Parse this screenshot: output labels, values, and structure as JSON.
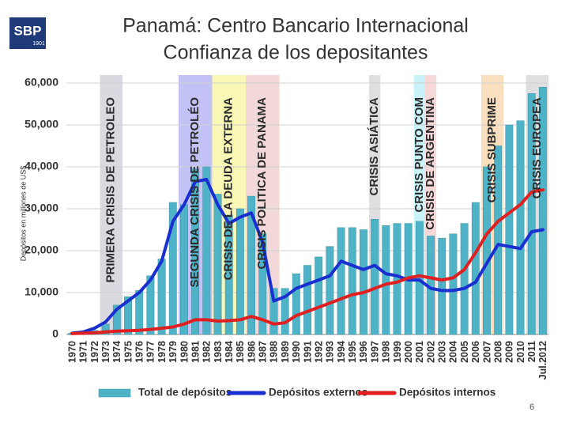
{
  "logo": {
    "text": "SBP",
    "year": "1901"
  },
  "page_number": "6",
  "chart_data": {
    "type": "combo",
    "title": "Panamá: Centro Bancario Internacional",
    "subtitle": "Confianza de los depositantes",
    "y_label": "Depósitos en millones de US$",
    "categories": [
      "1970",
      "1971",
      "1972",
      "1973",
      "1974",
      "1975",
      "1976",
      "1977",
      "1978",
      "1979",
      "1980",
      "1981",
      "1982",
      "1983",
      "1984",
      "1985",
      "1986",
      "1987",
      "1988",
      "1989",
      "1990",
      "1991",
      "1992",
      "1993",
      "1994",
      "1995",
      "1996",
      "1997",
      "1998",
      "1999",
      "2000",
      "2001",
      "2002",
      "2003",
      "2004",
      "2005",
      "2006",
      "2007",
      "2008",
      "2009",
      "2010",
      "2011",
      "Jul.2012"
    ],
    "series": [
      {
        "name": "Total de depósitos",
        "type": "bar",
        "color": "#4fb3c8",
        "values": [
          300,
          500,
          1000,
          2500,
          7000,
          9000,
          10500,
          14000,
          18000,
          31500,
          31000,
          39500,
          40000,
          33500,
          28500,
          30000,
          33000,
          24000,
          11000,
          11000,
          14500,
          16500,
          18500,
          21000,
          25500,
          25500,
          25000,
          27500,
          26000,
          26500,
          26500,
          27000,
          23500,
          23000,
          24000,
          26500,
          31500,
          40000,
          45000,
          50000,
          51000,
          57500,
          59000
        ]
      },
      {
        "name": "Depósitos externos",
        "type": "line",
        "color": "#1a2fd0",
        "values": [
          300,
          600,
          1500,
          3000,
          6000,
          8000,
          10000,
          13000,
          17500,
          27000,
          31000,
          36500,
          37000,
          31000,
          26500,
          28000,
          29000,
          22000,
          8000,
          9000,
          11000,
          12000,
          13000,
          14000,
          17500,
          16500,
          15500,
          16500,
          14500,
          14000,
          13000,
          13000,
          11000,
          10500,
          10500,
          11000,
          12500,
          17000,
          21500,
          21000,
          20500,
          24500,
          25000
        ]
      },
      {
        "name": "Depósitos internos",
        "type": "line",
        "color": "#e02020",
        "values": [
          200,
          300,
          400,
          600,
          800,
          900,
          1000,
          1200,
          1500,
          1800,
          2500,
          3500,
          3500,
          3200,
          3300,
          3500,
          4300,
          3500,
          2500,
          2800,
          4500,
          5500,
          6500,
          7500,
          8500,
          9500,
          10000,
          11000,
          12000,
          12500,
          13500,
          14000,
          13500,
          13000,
          13500,
          15500,
          19500,
          24000,
          27000,
          29000,
          31000,
          34000,
          34500
        ]
      }
    ],
    "annotations": [
      {
        "text": "PRIMERA CRISIS DE PETROLEO",
        "from": "1973",
        "to": "1974",
        "color": "#b8bcc4"
      },
      {
        "text": "SEGUNDA CRISIS DE PETROLÉO",
        "from": "1980",
        "to": "1982",
        "color": "#8f8ff0"
      },
      {
        "text": "CRISIS DE LA DEUDA EXTERNA",
        "from": "1983",
        "to": "1985",
        "color": "#f4f07a"
      },
      {
        "text": "CRISIS POLITICA DE PANAMA",
        "from": "1986",
        "to": "1988",
        "color": "#e8b8b8"
      },
      {
        "text": "CRISIS ASIÁTICA",
        "from": "1997",
        "to": "1997",
        "color": "#c4c4c8"
      },
      {
        "text": "CRISIS PUNTO COM",
        "from": "2001",
        "to": "2001",
        "color": "#9ee8f4"
      },
      {
        "text": "CRISIS DE ARGENTINA",
        "from": "2002",
        "to": "2002",
        "color": "#f0b8b8"
      },
      {
        "text": "CRISIS SUBPRIME",
        "from": "2007",
        "to": "2008",
        "color": "#f4c48a"
      },
      {
        "text": "CRISIS EUROPEA",
        "from": "2011",
        "to": "Jul.2012",
        "color": "#c4c4c8"
      }
    ],
    "ylim": [
      0,
      60000
    ],
    "yticks": [
      0,
      {
        "value": 10000,
        "label": "10,000"
      },
      {
        "value": 20000,
        "label": "20,000"
      },
      {
        "value": 30000,
        "label": "30,000"
      },
      {
        "value": 40000,
        "label": "40,000"
      },
      {
        "value": 50000,
        "label": "50,000"
      },
      {
        "value": 60000,
        "label": "60,000"
      }
    ],
    "grid": true
  }
}
